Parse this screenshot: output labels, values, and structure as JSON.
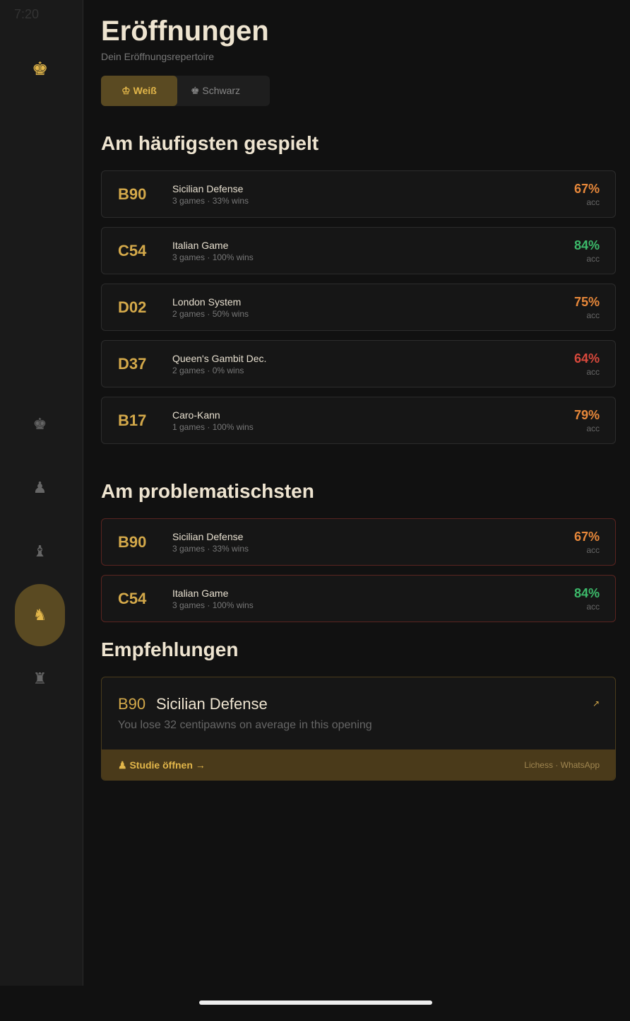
{
  "status": {
    "time": "7:20"
  },
  "nav": {
    "logo": "♚",
    "items": [
      "♚",
      "♟",
      "♝",
      "♞",
      "♜"
    ],
    "active": 3
  },
  "header": {
    "title": "Eröffnungen",
    "subtitle": "Dein Eröffnungsrepertoire"
  },
  "tabs": [
    {
      "label": "♔ Weiß",
      "active": true
    },
    {
      "label": "♚ Schwarz",
      "active": false
    }
  ],
  "sections": [
    {
      "title": "Am häufigsten gespielt",
      "problem": false,
      "rows": [
        {
          "code": "B90",
          "name": "Sicilian Defense",
          "meta": "3 games · 33% wins",
          "acc": "67%",
          "acc_label": "acc",
          "color": "#e8883a"
        },
        {
          "code": "C54",
          "name": "Italian Game",
          "meta": "3 games · 100% wins",
          "acc": "84%",
          "acc_label": "acc",
          "color": "#3cba6a"
        },
        {
          "code": "D02",
          "name": "London System",
          "meta": "2 games · 50% wins",
          "acc": "75%",
          "acc_label": "acc",
          "color": "#e8883a"
        },
        {
          "code": "D37",
          "name": "Queen's Gambit Dec.",
          "meta": "2 games · 0% wins",
          "acc": "64%",
          "acc_label": "acc",
          "color": "#d9493c"
        },
        {
          "code": "B17",
          "name": "Caro-Kann",
          "meta": "1 games · 100% wins",
          "acc": "79%",
          "acc_label": "acc",
          "color": "#e8883a"
        }
      ]
    },
    {
      "title": "Am problematischsten",
      "problem": true,
      "rows": [
        {
          "code": "B90",
          "name": "Sicilian Defense",
          "meta": "3 games · 33% wins",
          "acc": "67%",
          "acc_label": "acc",
          "color": "#e8883a"
        },
        {
          "code": "C54",
          "name": "Italian Game",
          "meta": "3 games · 100% wins",
          "acc": "84%",
          "acc_label": "acc",
          "color": "#3cba6a"
        }
      ]
    }
  ],
  "recommendations": {
    "title": "Empfehlungen",
    "card": {
      "code": "B90",
      "name": "Sicilian Defense",
      "arrow": "↗",
      "description": "You lose 32 centipawns on average in this opening",
      "action": "♟ Studie öffnen →",
      "sources": "Lichess · WhatsApp"
    }
  }
}
